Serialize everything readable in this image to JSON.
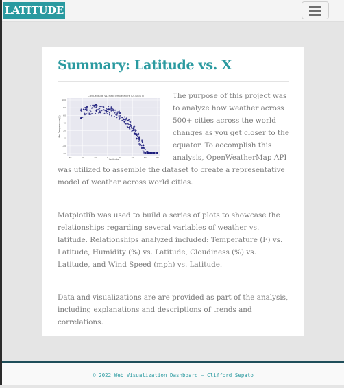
{
  "nav": {
    "brand": "LATITUDE",
    "toggle_icon": "hamburger-menu-icon"
  },
  "summary": {
    "title": "Summary: Latitude vs. X",
    "thumbnail": {
      "title": "City Latitude vs. Max Temperature (01/08/17)",
      "xlabel": "Latitude",
      "ylabel": "Max Temperature (F)",
      "xticks": [
        "-60",
        "-40",
        "-20",
        "0",
        "20",
        "40",
        "60",
        "80"
      ],
      "yticks": [
        "100",
        "80",
        "60",
        "40",
        "20",
        "0",
        "-20",
        "-40"
      ],
      "point_color": "#1a1a7a"
    },
    "paragraphs": [
      "The purpose of this project was to analyze how weather across 500+ cities across the world changes as you get closer to the equator. To accomplish this analysis, OpenWeatherMap API was utilized to assemble the dataset to create a representative model of weather across world cities.",
      "Matplotlib was used to build a series of plots to showcase the relationships regarding several variables of weather vs. latitude. Relationships analyzed included: Temperature (F) vs. Latitude, Humidity (%) vs. Latitude, Cloudiness (%) vs. Latitude, and Wind Speed (mph) vs. Latitude.",
      "Data and visualizations are are provided as part of the analysis, including explanations and descriptions of trends and correlations."
    ]
  },
  "footer": {
    "text": "© 2022 Web Visualization Dashboard – Clifford Sepato"
  },
  "colors": {
    "accent": "#2a9aa0",
    "footer_rule": "#1f4e5a",
    "page_bg": "#e5e5e5"
  }
}
